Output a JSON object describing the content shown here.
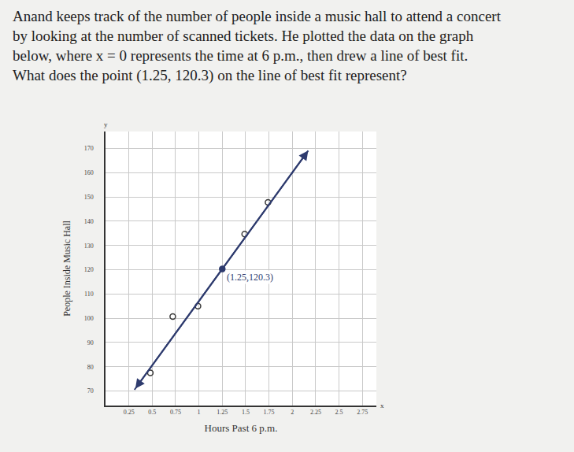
{
  "question": {
    "lines": [
      "Anand keeps track of the number of people inside a music hall to attend a concert",
      "by looking at the number of scanned tickets. He plotted the data on the graph",
      "below, where x = 0 represents the time at 6 p.m., then drew a line of best fit.",
      "What does the point (1.25, 120.3) on the line of best fit represent?"
    ]
  },
  "chart_data": {
    "type": "scatter",
    "x_label": "Hours Past 6 p.m.",
    "y_label": "People Inside Music Hall",
    "axis_letters": {
      "x": "x",
      "y": "y"
    },
    "xlim": [
      0,
      2.9
    ],
    "ylim": [
      64,
      177
    ],
    "xticks": [
      0.25,
      0.5,
      0.75,
      1,
      1.25,
      1.5,
      1.75,
      2,
      2.25,
      2.5,
      2.75
    ],
    "yticks": [
      70,
      80,
      90,
      100,
      110,
      120,
      130,
      140,
      150,
      160,
      170
    ],
    "grid": true,
    "series": [
      {
        "type": "scatter",
        "marker": "open circle",
        "color": "#3a3a3a",
        "x": [
          0.48,
          0.72,
          0.99,
          1.49,
          1.74
        ],
        "values": [
          77.5,
          100.7,
          105,
          134.7,
          147.8
        ]
      },
      {
        "type": "line",
        "line_style": "arrows",
        "color": "#2e3b6e",
        "x": [
          0.31,
          2.17
        ],
        "values": [
          70.5,
          169.1
        ]
      },
      {
        "type": "scatter",
        "marker": "filled circle",
        "color": "#2e3b6e",
        "x": [
          1.25
        ],
        "values": [
          120.3
        ]
      }
    ],
    "annotations": [
      {
        "text": "(1.25,120.3)",
        "x": 1.25,
        "y": 120.3
      }
    ]
  }
}
